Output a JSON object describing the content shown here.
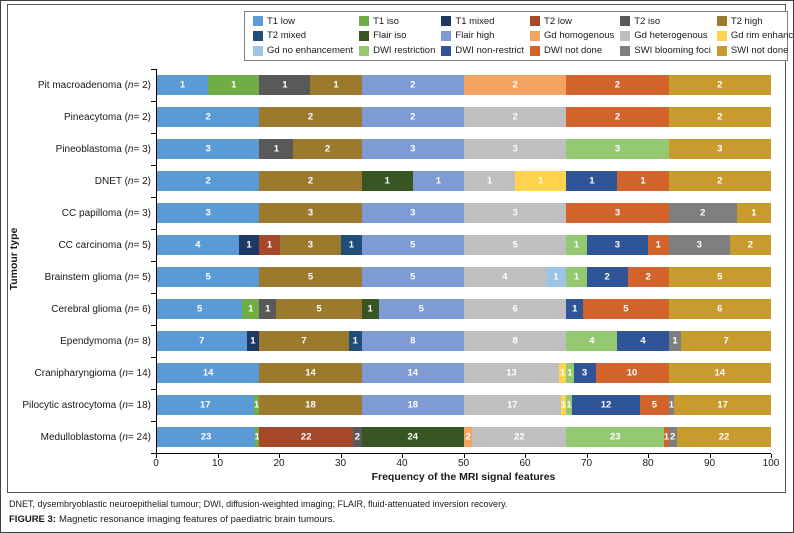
{
  "figure": {
    "footnote": "DNET, dysembryoblastic neuroepithelial tumour; DWI, diffusion-weighted imaging; FLAIR, fluid-attenuated inversion recovery.",
    "caption_label": "FIGURE 3:",
    "caption_text": "Magnetic resonance imaging features of paediatric brain tumours."
  },
  "chart_data": {
    "type": "bar",
    "orientation": "horizontal",
    "stacked": true,
    "normalized_to_percent": true,
    "title": "",
    "xlabel": "Frequency of the MRI signal features",
    "ylabel": "Tumour type",
    "xlim": [
      0,
      100
    ],
    "x_ticks": [
      0,
      10,
      20,
      30,
      40,
      50,
      60,
      70,
      80,
      90,
      100
    ],
    "grid": false,
    "legend_position": "top",
    "series": [
      {
        "name": "T1 low",
        "color": "#5B9BD5"
      },
      {
        "name": "T1 iso",
        "color": "#70AD47"
      },
      {
        "name": "T1 mixed",
        "color": "#1F3864"
      },
      {
        "name": "T2 low",
        "color": "#A6492B"
      },
      {
        "name": "T2 iso",
        "color": "#595959"
      },
      {
        "name": "T2 high",
        "color": "#9B7A2D"
      },
      {
        "name": "T2 mixed",
        "color": "#1F4E79"
      },
      {
        "name": "Flair iso",
        "color": "#375623"
      },
      {
        "name": "Flair high",
        "color": "#7E9BD3"
      },
      {
        "name": "Gd homogenous",
        "color": "#F2A35F"
      },
      {
        "name": "Gd heterogenous",
        "color": "#BFBFBF"
      },
      {
        "name": "Gd rim enhancement",
        "color": "#FFD34D"
      },
      {
        "name": "Gd no enhancement",
        "color": "#9DC3E6"
      },
      {
        "name": "DWI restriction",
        "color": "#94C972"
      },
      {
        "name": "DWI non-restrict",
        "color": "#2F5597"
      },
      {
        "name": "DWI not done",
        "color": "#D2632A"
      },
      {
        "name": "SWI blooming foci",
        "color": "#7F7F7F"
      },
      {
        "name": "SWI not done",
        "color": "#C79B2C"
      }
    ],
    "rows": [
      {
        "label": "Pit macroadenoma (n = 2)",
        "name": "Pit macroadenoma",
        "n": 2,
        "segments": [
          [
            "T1 low",
            1
          ],
          [
            "T1 iso",
            1
          ],
          [
            "T2 iso",
            1
          ],
          [
            "T2 high",
            1
          ],
          [
            "Flair high",
            2
          ],
          [
            "Gd homogenous",
            2
          ],
          [
            "DWI not done",
            2
          ],
          [
            "SWI not done",
            2
          ]
        ]
      },
      {
        "label": "Pineacytoma (n = 2)",
        "name": "Pineacytoma",
        "n": 2,
        "segments": [
          [
            "T1 low",
            2
          ],
          [
            "T2 high",
            2
          ],
          [
            "Flair high",
            2
          ],
          [
            "Gd heterogenous",
            2
          ],
          [
            "DWI not done",
            2
          ],
          [
            "SWI not done",
            2
          ]
        ]
      },
      {
        "label": "Pineoblastoma (n = 3)",
        "name": "Pineoblastoma",
        "n": 3,
        "segments": [
          [
            "T1 low",
            3
          ],
          [
            "T2 iso",
            1
          ],
          [
            "T2 high",
            2
          ],
          [
            "Flair high",
            3
          ],
          [
            "Gd heterogenous",
            3
          ],
          [
            "DWI restriction",
            3
          ],
          [
            "SWI not done",
            3
          ]
        ]
      },
      {
        "label": "DNET (n = 2)",
        "name": "DNET",
        "n": 2,
        "segments": [
          [
            "T1 low",
            2
          ],
          [
            "T2 high",
            2
          ],
          [
            "Flair iso",
            1
          ],
          [
            "Flair high",
            1
          ],
          [
            "Gd heterogenous",
            1
          ],
          [
            "Gd rim enhancement",
            1
          ],
          [
            "DWI non-restrict",
            1
          ],
          [
            "DWI not done",
            1
          ],
          [
            "SWI not done",
            2
          ]
        ]
      },
      {
        "label": "CC papilloma (n = 3)",
        "name": "CC papilloma",
        "n": 3,
        "segments": [
          [
            "T1 low",
            3
          ],
          [
            "T2 high",
            3
          ],
          [
            "Flair high",
            3
          ],
          [
            "Gd heterogenous",
            3
          ],
          [
            "DWI not done",
            3
          ],
          [
            "SWI blooming foci",
            2
          ],
          [
            "SWI not done",
            1
          ]
        ]
      },
      {
        "label": "CC carcinoma (n = 5)",
        "name": "CC carcinoma",
        "n": 5,
        "segments": [
          [
            "T1 low",
            4
          ],
          [
            "T1 mixed",
            1
          ],
          [
            "T2 low",
            1
          ],
          [
            "T2 high",
            3
          ],
          [
            "T2 mixed",
            1
          ],
          [
            "Flair high",
            5
          ],
          [
            "Gd heterogenous",
            5
          ],
          [
            "DWI restriction",
            1
          ],
          [
            "DWI non-restrict",
            3
          ],
          [
            "DWI not done",
            1
          ],
          [
            "SWI blooming foci",
            3
          ],
          [
            "SWI not done",
            2
          ]
        ]
      },
      {
        "label": "Brainstem glioma (n = 5)",
        "name": "Brainstem glioma",
        "n": 5,
        "segments": [
          [
            "T1 low",
            5
          ],
          [
            "T2 high",
            5
          ],
          [
            "Flair high",
            5
          ],
          [
            "Gd heterogenous",
            4
          ],
          [
            "Gd no enhancement",
            1
          ],
          [
            "DWI restriction",
            1
          ],
          [
            "DWI non-restrict",
            2
          ],
          [
            "DWI not done",
            2
          ],
          [
            "SWI not done",
            5
          ]
        ]
      },
      {
        "label": "Cerebral glioma (n = 6)",
        "name": "Cerebral glioma",
        "n": 6,
        "segments": [
          [
            "T1 low",
            5
          ],
          [
            "T1 iso",
            1
          ],
          [
            "T2 iso",
            1
          ],
          [
            "T2 high",
            5
          ],
          [
            "Flair iso",
            1
          ],
          [
            "Flair high",
            5
          ],
          [
            "Gd heterogenous",
            6
          ],
          [
            "DWI non-restrict",
            1
          ],
          [
            "DWI not done",
            5
          ],
          [
            "SWI not done",
            6
          ]
        ]
      },
      {
        "label": "Ependymoma (n = 8)",
        "name": "Ependymoma",
        "n": 8,
        "segments": [
          [
            "T1 low",
            7
          ],
          [
            "T1 mixed",
            1
          ],
          [
            "T2 high",
            7
          ],
          [
            "T2 mixed",
            1
          ],
          [
            "Flair high",
            8
          ],
          [
            "Gd heterogenous",
            8
          ],
          [
            "DWI restriction",
            4
          ],
          [
            "DWI non-restrict",
            4
          ],
          [
            "SWI blooming foci",
            1
          ],
          [
            "SWI not done",
            7
          ]
        ]
      },
      {
        "label": "Cranipharyngioma (n = 14)",
        "name": "Cranipharyngioma",
        "n": 14,
        "segments": [
          [
            "T1 low",
            14
          ],
          [
            "T2 high",
            14
          ],
          [
            "Flair high",
            14
          ],
          [
            "Gd heterogenous",
            13
          ],
          [
            "Gd rim enhancement",
            1
          ],
          [
            "DWI restriction",
            1
          ],
          [
            "DWI non-restrict",
            3
          ],
          [
            "DWI not done",
            10
          ],
          [
            "SWI not done",
            14
          ]
        ]
      },
      {
        "label": "Pilocytic astrocytoma (n = 18)",
        "name": "Pilocytic astrocytoma",
        "n": 18,
        "segments": [
          [
            "T1 low",
            17
          ],
          [
            "T1 iso",
            1
          ],
          [
            "T2 high",
            18
          ],
          [
            "Flair high",
            18
          ],
          [
            "Gd heterogenous",
            17
          ],
          [
            "Gd rim enhancement",
            1
          ],
          [
            "DWI restriction",
            1
          ],
          [
            "DWI non-restrict",
            12
          ],
          [
            "DWI not done",
            5
          ],
          [
            "SWI blooming foci",
            1
          ],
          [
            "SWI not done",
            17
          ]
        ]
      },
      {
        "label": "Medulloblastoma (n = 24)",
        "name": "Medulloblastoma",
        "n": 24,
        "segments": [
          [
            "T1 low",
            23
          ],
          [
            "T1 iso",
            1
          ],
          [
            "T2 low",
            22
          ],
          [
            "T2 iso",
            2
          ],
          [
            "Flair iso",
            24
          ],
          [
            "Gd homogenous",
            2
          ],
          [
            "Gd heterogenous",
            22
          ],
          [
            "DWI restriction",
            23
          ],
          [
            "DWI not done",
            1
          ],
          [
            "SWI blooming foci",
            2
          ],
          [
            "SWI not done",
            22
          ]
        ]
      }
    ]
  }
}
